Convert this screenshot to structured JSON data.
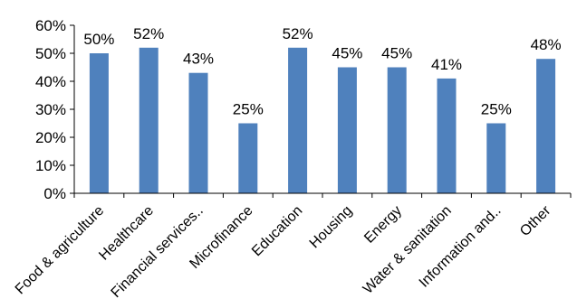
{
  "chart_data": {
    "type": "bar",
    "categories": [
      "Food & agriculture",
      "Healthcare",
      "Financial services..",
      "Microfinance",
      "Education",
      "Housing",
      "Energy",
      "Water & sanitation",
      "Information and..",
      "Other"
    ],
    "values": [
      50,
      52,
      43,
      25,
      52,
      45,
      45,
      41,
      25,
      48
    ],
    "data_labels": [
      "50%",
      "52%",
      "43%",
      "25%",
      "52%",
      "45%",
      "45%",
      "41%",
      "25%",
      "48%"
    ],
    "y_ticks": [
      0,
      10,
      20,
      30,
      40,
      50,
      60
    ],
    "y_tick_labels": [
      "0%",
      "10%",
      "20%",
      "30%",
      "40%",
      "50%",
      "60%"
    ],
    "ylim": [
      0,
      60
    ],
    "grid": false,
    "legend": "none",
    "colors": {
      "bar": "#4f81bd",
      "axis": "#000000"
    }
  }
}
